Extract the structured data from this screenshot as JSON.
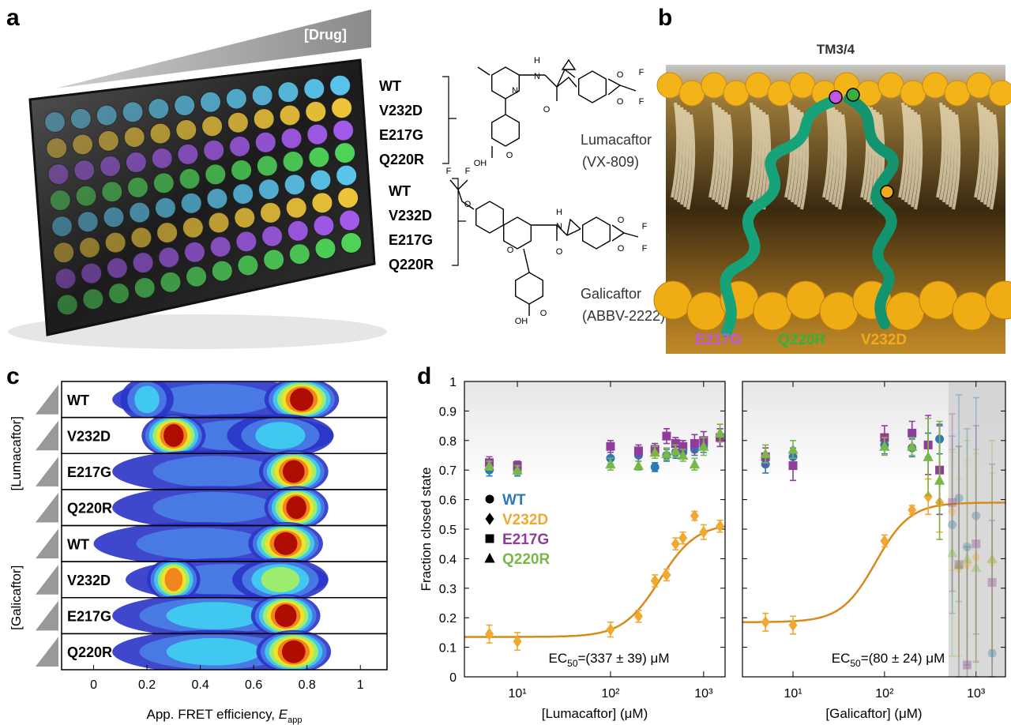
{
  "panel_labels": [
    "a",
    "b",
    "c",
    "d"
  ],
  "panel_a": {
    "drug_label": "[Drug]",
    "lumacaftor_rows": [
      "WT",
      "V232D",
      "E217G",
      "Q220R"
    ],
    "galicaftor_rows": [
      "WT",
      "V232D",
      "E217G",
      "Q220R"
    ],
    "compounds": [
      {
        "name": "Lumacaftor",
        "code": "(VX-809)",
        "atoms": [
          "N",
          "H",
          "N",
          "O",
          "O",
          "O",
          "F",
          "F",
          "OH",
          "O"
        ]
      },
      {
        "name": "Galicaftor",
        "code": "(ABBV-2222)",
        "atoms": [
          "F",
          "F",
          "O",
          "O",
          "H",
          "N",
          "O",
          "O",
          "O",
          "F",
          "F",
          "OH",
          "O"
        ]
      }
    ]
  },
  "panel_b": {
    "title": "TM3/4",
    "mutations": [
      {
        "label": "E217G",
        "color": "#c455e0"
      },
      {
        "label": "Q220R",
        "color": "#3aae3a"
      },
      {
        "label": "V232D",
        "color": "#f2aa1c"
      }
    ]
  },
  "panel_c": {
    "xlim": [
      -0.12,
      1.1
    ],
    "xticks": [
      0,
      0.2,
      0.4,
      0.6,
      0.8,
      1
    ],
    "xlabel": "App. FRET efficiency, ",
    "xlabel_var": "E",
    "xlabel_sub": "app",
    "groups": [
      {
        "label": "[Lumacaftor]",
        "rows": [
          "WT",
          "V232D",
          "E217G",
          "Q220R"
        ]
      },
      {
        "label": "[Galicaftor]",
        "rows": [
          "WT",
          "V232D",
          "E217G",
          "Q220R"
        ]
      }
    ]
  },
  "chart_data": [
    {
      "type": "scatter",
      "xlabel": "[Lumacaftor] (μM)",
      "ylabel": "Fraction closed state",
      "log_x": true,
      "xlim": [
        2.7,
        1700
      ],
      "ylim": [
        0,
        1
      ],
      "xticks": [
        {
          "value": 10,
          "label": "10¹"
        },
        {
          "value": 100,
          "label": "10²"
        },
        {
          "value": 1000,
          "label": "10³"
        }
      ],
      "yticks": [
        0,
        0.1,
        0.2,
        0.3,
        0.4,
        0.5,
        0.6,
        0.7,
        0.8,
        0.9,
        1
      ],
      "ytick_labels": true,
      "legend": true,
      "x": [
        5,
        10,
        100,
        200,
        300,
        400,
        500,
        600,
        800,
        1000,
        1500
      ],
      "series": [
        {
          "name": "WT",
          "color": "#2a7ab8",
          "marker": "circle",
          "values": [
            0.7,
            0.7,
            0.74,
            0.75,
            0.71,
            0.75,
            0.76,
            0.76,
            0.77,
            0.78,
            0.81
          ],
          "errors": [
            0.02,
            0.02,
            0.02,
            0.02,
            0.015,
            0.02,
            0.02,
            0.02,
            0.02,
            0.02,
            0.03
          ]
        },
        {
          "name": "V232D",
          "color": "#f0a830",
          "marker": "diamond",
          "values": [
            0.145,
            0.12,
            0.16,
            0.205,
            0.325,
            0.345,
            0.45,
            0.47,
            0.545,
            0.49,
            0.51
          ],
          "errors": [
            0.03,
            0.03,
            0.025,
            0.02,
            0.02,
            0.02,
            0.02,
            0.02,
            0.015,
            0.025,
            0.02
          ]
        },
        {
          "name": "E217G",
          "color": "#8e3d9a",
          "marker": "square",
          "values": [
            0.725,
            0.715,
            0.78,
            0.765,
            0.77,
            0.815,
            0.79,
            0.78,
            0.79,
            0.8,
            0.81
          ],
          "errors": [
            0.02,
            0.015,
            0.02,
            0.02,
            0.02,
            0.025,
            0.02,
            0.02,
            0.03,
            0.03,
            0.03
          ]
        },
        {
          "name": "Q220R",
          "color": "#7ab648",
          "marker": "triangle",
          "values": [
            0.715,
            0.7,
            0.72,
            0.715,
            0.76,
            0.755,
            0.765,
            0.75,
            0.72,
            0.78,
            0.825
          ],
          "errors": [
            0.015,
            0.015,
            0.02,
            0.015,
            0.02,
            0.02,
            0.02,
            0.02,
            0.02,
            0.03,
            0.03
          ]
        }
      ],
      "fit": {
        "series": 1,
        "bottom": 0.135,
        "top": 0.52,
        "ec50": 337,
        "hill": 2.2,
        "color": "#d98a1c"
      },
      "annotation": {
        "prefix": "EC",
        "sub": "50",
        "text": "=(337 ± 39) μM"
      }
    },
    {
      "type": "scatter",
      "xlabel": "[Galicaftor] (μM)",
      "log_x": true,
      "xlim": [
        2.8,
        2100
      ],
      "ylim": [
        0,
        1
      ],
      "xticks": [
        {
          "value": 10,
          "label": "10¹"
        },
        {
          "value": 100,
          "label": "10²"
        },
        {
          "value": 1000,
          "label": "10³"
        }
      ],
      "yticks": [
        0,
        0.1,
        0.2,
        0.3,
        0.4,
        0.5,
        0.6,
        0.7,
        0.8,
        0.9,
        1
      ],
      "ytick_labels": false,
      "legend": false,
      "shade": [
        500,
        2100
      ],
      "x": [
        5,
        10,
        100,
        200,
        300,
        400,
        550,
        650,
        800,
        1000,
        1500
      ],
      "series": [
        {
          "name": "WT",
          "color": "#2a7ab8",
          "marker": "circle",
          "values": [
            0.72,
            0.745,
            0.785,
            0.775,
            0.785,
            0.805,
            0.515,
            0.605,
            0.44,
            0.545,
            0.08
          ],
          "errors": [
            0.03,
            0.03,
            0.03,
            0.03,
            0.04,
            0.05,
            0.3,
            0.35,
            0.4,
            0.4,
            0.45
          ]
        },
        {
          "name": "V232D",
          "color": "#f0a830",
          "marker": "diamond",
          "values": [
            0.185,
            0.175,
            0.46,
            0.565,
            0.61,
            0.59,
            0.56,
            0.37,
            0.38,
            0.405,
            0.39
          ],
          "errors": [
            0.03,
            0.03,
            0.02,
            0.015,
            0.06,
            0.1,
            0.2,
            0.3,
            0.35,
            0.35,
            0.3
          ]
        },
        {
          "name": "E217G",
          "color": "#8e3d9a",
          "marker": "square",
          "values": [
            0.745,
            0.715,
            0.81,
            0.825,
            0.785,
            0.7,
            0.59,
            0.38,
            0.04,
            0.45,
            0.32
          ],
          "errors": [
            0.03,
            0.05,
            0.04,
            0.04,
            0.1,
            0.15,
            0.3,
            0.4,
            0.4,
            0.4,
            0.4
          ]
        },
        {
          "name": "Q220R",
          "color": "#7ab648",
          "marker": "triangle",
          "values": [
            0.755,
            0.77,
            0.78,
            0.78,
            0.745,
            0.665,
            0.42,
            0.38,
            0.4,
            0.37,
            0.4
          ],
          "errors": [
            0.03,
            0.03,
            0.03,
            0.03,
            0.13,
            0.2,
            0.35,
            0.4,
            0.4,
            0.4,
            0.4
          ]
        }
      ],
      "fit": {
        "series": 1,
        "bottom": 0.185,
        "top": 0.59,
        "ec50": 80,
        "hill": 2.3,
        "color": "#d98a1c"
      },
      "annotation": {
        "prefix": "EC",
        "sub": "50",
        "text": "=(80 ± 24) μM"
      }
    }
  ]
}
